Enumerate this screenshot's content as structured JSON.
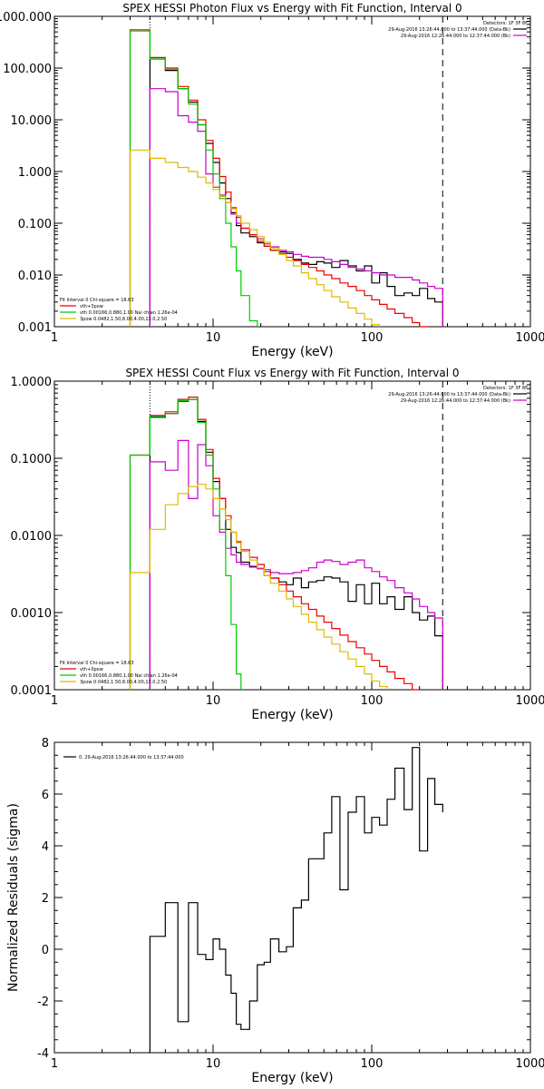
{
  "chart_data": [
    {
      "type": "line",
      "title": "SPEX HESSI Photon Flux vs Energy with Fit Function, Interval 0",
      "xlabel": "Energy (keV)",
      "ylabel": "",
      "xscale": "log",
      "yscale": "log",
      "xlim": [
        1,
        1000
      ],
      "ylim": [
        0.001,
        1000
      ],
      "x_ticks": [
        "1",
        "10",
        "100",
        "1000"
      ],
      "y_ticks": [
        "0.001",
        "0.010",
        "0.100",
        "1.000",
        "10.000",
        "100.000",
        "1000.000"
      ],
      "header_text": [
        "Detectors: 1F 3F 8F",
        "29-Aug-2016 13:26:44.000 to 13:37:44.000 (Data-Bk)",
        "29-Aug-2016 12:26:44.000 to 12:37:44.000 (Bk)"
      ],
      "legend_text": [
        "Fit Interval 0   Chi-square = 18.63",
        "vth+3pow",
        "vth 0.00166,0.880,1.00   Nai chian 1.26e-04",
        "3pow 0.0482,1.50,8.00,4.00,13.0,2.50"
      ],
      "vlines": {
        "dotted": 4.0,
        "dashed": 280
      },
      "edges": [
        3,
        4,
        5,
        6,
        7,
        8,
        9,
        10,
        11,
        12,
        13,
        14,
        15,
        17,
        19,
        21,
        23,
        26,
        29,
        32,
        36,
        40,
        45,
        50,
        56,
        63,
        71,
        80,
        90,
        100,
        112,
        125,
        140,
        160,
        180,
        200,
        225,
        250,
        280
      ],
      "series": [
        {
          "name": "Data-Bk",
          "color": "#000000",
          "values": [
            null,
            150,
            90,
            40,
            22,
            8,
            3.5,
            1.5,
            0.6,
            0.3,
            0.16,
            0.09,
            0.065,
            0.055,
            0.042,
            0.036,
            0.03,
            0.028,
            0.026,
            0.02,
            0.017,
            0.016,
            0.018,
            0.017,
            0.014,
            0.019,
            0.015,
            0.012,
            0.015,
            0.007,
            0.011,
            0.006,
            0.004,
            0.0045,
            0.004,
            0.0055,
            0.0035,
            0.003
          ]
        },
        {
          "name": "Bk",
          "color": "#cc00cc",
          "values": [
            null,
            40,
            35,
            12,
            9,
            6,
            0.9,
            0.5,
            0.35,
            0.25,
            0.15,
            0.1,
            0.08,
            0.06,
            0.05,
            0.04,
            0.035,
            0.03,
            0.028,
            0.025,
            0.023,
            0.022,
            0.022,
            0.02,
            0.018,
            0.016,
            0.014,
            0.013,
            0.012,
            0.011,
            0.01,
            0.01,
            0.009,
            0.009,
            0.008,
            0.007,
            0.006,
            0.0055
          ]
        },
        {
          "name": "vth+3pow",
          "color": "#ee0000",
          "values": [
            550,
            160,
            100,
            44,
            24,
            10,
            4,
            1.8,
            0.8,
            0.4,
            0.2,
            0.13,
            0.08,
            0.06,
            0.045,
            0.036,
            0.03,
            0.026,
            0.022,
            0.019,
            0.016,
            0.014,
            0.012,
            0.01,
            0.0085,
            0.007,
            0.006,
            0.005,
            0.004,
            0.0033,
            0.0027,
            0.0022,
            0.0018,
            0.0015,
            0.0012,
            0.001,
            null,
            null
          ]
        },
        {
          "name": "vth",
          "color": "#00cc00",
          "values": [
            520,
            150,
            95,
            40,
            20,
            8,
            2.6,
            0.9,
            0.3,
            0.1,
            0.035,
            0.012,
            0.004,
            0.0013,
            null,
            null,
            null,
            null,
            null,
            null,
            null,
            null,
            null,
            null,
            null,
            null,
            null,
            null,
            null,
            null,
            null,
            null,
            null,
            null,
            null,
            null,
            null,
            null
          ]
        },
        {
          "name": "3pow",
          "color": "#ddbb00",
          "values": [
            2.6,
            1.8,
            1.5,
            1.2,
            1.0,
            0.78,
            0.6,
            0.45,
            0.33,
            0.25,
            0.19,
            0.14,
            0.1,
            0.075,
            0.055,
            0.043,
            0.033,
            0.025,
            0.019,
            0.015,
            0.011,
            0.0085,
            0.0065,
            0.005,
            0.0038,
            0.003,
            0.0023,
            0.0018,
            0.0014,
            0.0011,
            null,
            null,
            null,
            null,
            null,
            null,
            null,
            null
          ]
        }
      ]
    },
    {
      "type": "line",
      "title": "SPEX HESSI Count Flux vs Energy with Fit Function, Interval 0",
      "xlabel": "Energy (keV)",
      "ylabel": "",
      "xscale": "log",
      "yscale": "log",
      "xlim": [
        1,
        1000
      ],
      "ylim": [
        0.0001,
        1
      ],
      "x_ticks": [
        "1",
        "10",
        "100",
        "1000"
      ],
      "y_ticks": [
        "0.0001",
        "0.0010",
        "0.0100",
        "0.1000",
        "1.0000"
      ],
      "header_text": [
        "Detectors: 1F 3F 8F",
        "29-Aug-2016 13:26:44.000 to 13:37:44.000 (Data-Bk)",
        "29-Aug-2016 12:26:44.000 to 12:37:44.000 (Bk)"
      ],
      "legend_text": [
        "Fit Interval 0   Chi-square = 18.63",
        "vth+3pow",
        "vth 0.00166,0.880,1.00   Nai chian 1.26e-04",
        "3pow 0.0482,1.50,8.00,4.00,13.0,2.50"
      ],
      "vlines": {
        "dotted": 4.0,
        "dashed": 280
      },
      "edges": [
        3,
        4,
        5,
        6,
        7,
        8,
        9,
        10,
        11,
        12,
        13,
        14,
        15,
        17,
        19,
        21,
        23,
        26,
        29,
        32,
        36,
        40,
        45,
        50,
        56,
        63,
        71,
        80,
        90,
        100,
        112,
        125,
        140,
        160,
        180,
        200,
        225,
        250,
        280
      ],
      "series": [
        {
          "name": "Data-Bk",
          "color": "#000000",
          "values": [
            null,
            0.34,
            0.38,
            0.55,
            0.58,
            0.3,
            0.12,
            0.05,
            0.03,
            0.012,
            0.007,
            0.006,
            0.0045,
            0.0039,
            0.0037,
            0.003,
            0.0028,
            0.0025,
            0.0023,
            0.0028,
            0.0021,
            0.0025,
            0.0026,
            0.0029,
            0.0028,
            0.0025,
            0.0014,
            0.0023,
            0.0013,
            0.0024,
            0.0013,
            0.0016,
            0.0011,
            0.0016,
            0.001,
            0.0008,
            0.0009,
            0.0005
          ]
        },
        {
          "name": "Bk",
          "color": "#cc00cc",
          "values": [
            null,
            0.09,
            0.07,
            0.17,
            0.03,
            0.15,
            0.08,
            0.018,
            0.011,
            0.0068,
            0.0056,
            0.0045,
            0.0042,
            0.004,
            0.0037,
            0.0036,
            0.0033,
            0.0032,
            0.0032,
            0.0033,
            0.0035,
            0.0038,
            0.0045,
            0.0048,
            0.0046,
            0.0042,
            0.0045,
            0.0048,
            0.0038,
            0.0034,
            0.0029,
            0.0026,
            0.0021,
            0.0018,
            0.0015,
            0.0012,
            0.001,
            0.00085
          ]
        },
        {
          "name": "vth+3pow",
          "color": "#ee0000",
          "values": [
            0.11,
            0.36,
            0.4,
            0.58,
            0.62,
            0.32,
            0.13,
            0.055,
            0.03,
            0.018,
            0.011,
            0.0083,
            0.0065,
            0.0052,
            0.0042,
            0.0034,
            0.0028,
            0.0023,
            0.0019,
            0.0016,
            0.0013,
            0.0011,
            0.0009,
            0.00075,
            0.00062,
            0.00051,
            0.00042,
            0.00035,
            0.00029,
            0.00024,
            0.0002,
            0.00017,
            0.00014,
            0.00012,
            0.0001,
            null,
            null,
            null
          ]
        },
        {
          "name": "vth",
          "color": "#00cc00",
          "values": [
            0.11,
            0.35,
            0.38,
            0.56,
            0.58,
            0.29,
            0.11,
            0.04,
            0.012,
            0.003,
            0.0007,
            0.00016,
            null,
            null,
            null,
            null,
            null,
            null,
            null,
            null,
            null,
            null,
            null,
            null,
            null,
            null,
            null,
            null,
            null,
            null,
            null,
            null,
            null,
            null,
            null,
            null,
            null,
            null
          ]
        },
        {
          "name": "3pow",
          "color": "#ddbb00",
          "values": [
            0.0033,
            0.012,
            0.025,
            0.035,
            0.043,
            0.046,
            0.04,
            0.03,
            0.022,
            0.016,
            0.011,
            0.008,
            0.0062,
            0.0048,
            0.0038,
            0.003,
            0.0024,
            0.0019,
            0.0015,
            0.0012,
            0.00095,
            0.00075,
            0.0006,
            0.00048,
            0.00039,
            0.00031,
            0.00025,
            0.0002,
            0.00016,
            0.00013,
            0.00011,
            null,
            null,
            null,
            null,
            null,
            null,
            null
          ]
        }
      ]
    },
    {
      "type": "line",
      "title": "",
      "xlabel": "Energy (keV)",
      "ylabel": "Normalized Residuals (sigma)",
      "xscale": "log",
      "yscale": "linear",
      "xlim": [
        1,
        1000
      ],
      "ylim": [
        -4,
        8
      ],
      "x_ticks": [
        "1",
        "10",
        "100",
        "1000"
      ],
      "y_ticks": [
        "-4",
        "-2",
        "0",
        "2",
        "4",
        "6",
        "8"
      ],
      "header_text": [],
      "legend_text": [
        "0. 29-Aug-2016 13:26:44.000 to 13:37:44.000"
      ],
      "vlines": {},
      "edges": [
        4,
        5,
        6,
        7,
        8,
        9,
        10,
        11,
        12,
        13,
        14,
        15,
        17,
        19,
        21,
        23,
        26,
        29,
        32,
        36,
        40,
        45,
        50,
        56,
        63,
        71,
        80,
        90,
        100,
        112,
        125,
        140,
        160,
        180,
        200,
        225,
        250,
        280
      ],
      "series": [
        {
          "name": "0. 29-Aug-2016 13:26:44.000 to 13:37:44.000",
          "color": "#000000",
          "values": [
            0.5,
            1.8,
            -2.8,
            1.8,
            -0.2,
            -0.4,
            0.4,
            0.0,
            -1.0,
            -1.7,
            -2.9,
            -3.1,
            -2.0,
            -0.6,
            -0.5,
            0.4,
            -0.1,
            0.1,
            1.6,
            1.9,
            3.5,
            3.5,
            4.5,
            5.9,
            2.3,
            5.3,
            5.9,
            4.5,
            5.1,
            4.8,
            5.8,
            7.0,
            5.4,
            7.8,
            3.8,
            6.6,
            5.6,
            5.3
          ]
        }
      ]
    }
  ]
}
